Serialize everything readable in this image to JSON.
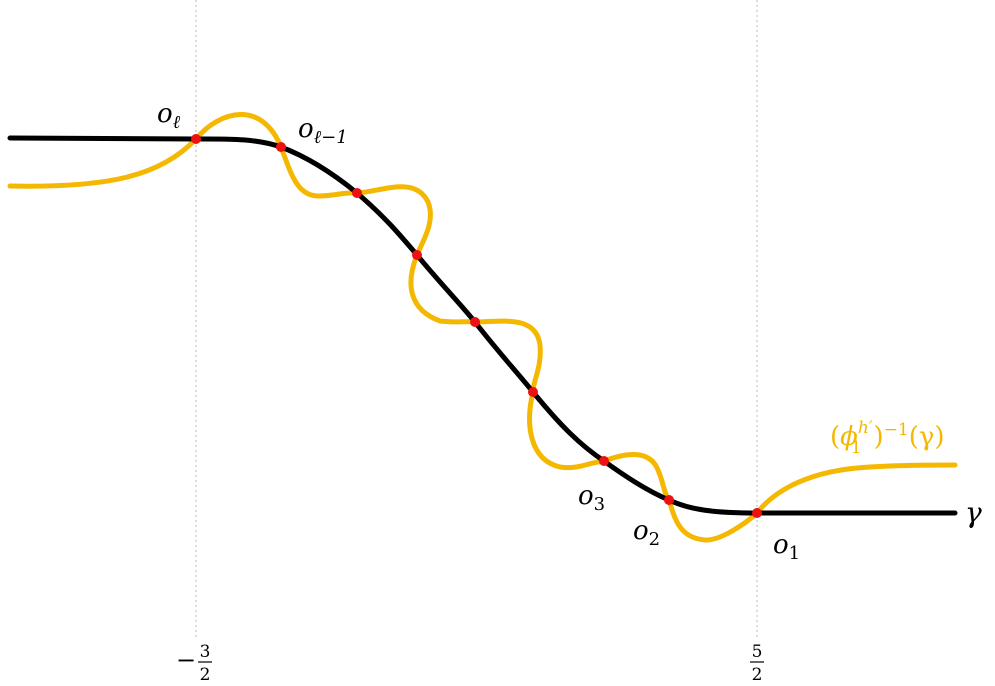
{
  "colors": {
    "gamma": "#000000",
    "preimage": "#f5b800",
    "points": "#ee1111",
    "guides": "#b8b8b8",
    "text": "#000000"
  },
  "labels": {
    "o_ell": {
      "base": "o",
      "sub": "ℓ"
    },
    "o_ell_minus_1": {
      "base": "o",
      "sub": "ℓ−1"
    },
    "o_3": {
      "base": "o",
      "sub": "3"
    },
    "o_2": {
      "base": "o",
      "sub": "2"
    },
    "o_1": {
      "base": "o",
      "sub": "1"
    },
    "gamma": "γ",
    "preimage": {
      "open": "(",
      "phi": "ϕ",
      "sub": "1",
      "sup": "h′",
      "close": ")",
      "sup2": "−1",
      "arg": "(γ)"
    }
  },
  "ticks": [
    {
      "sign": "−",
      "num": "3",
      "den": "2"
    },
    {
      "sign": "",
      "num": "5",
      "den": "2"
    }
  ]
}
